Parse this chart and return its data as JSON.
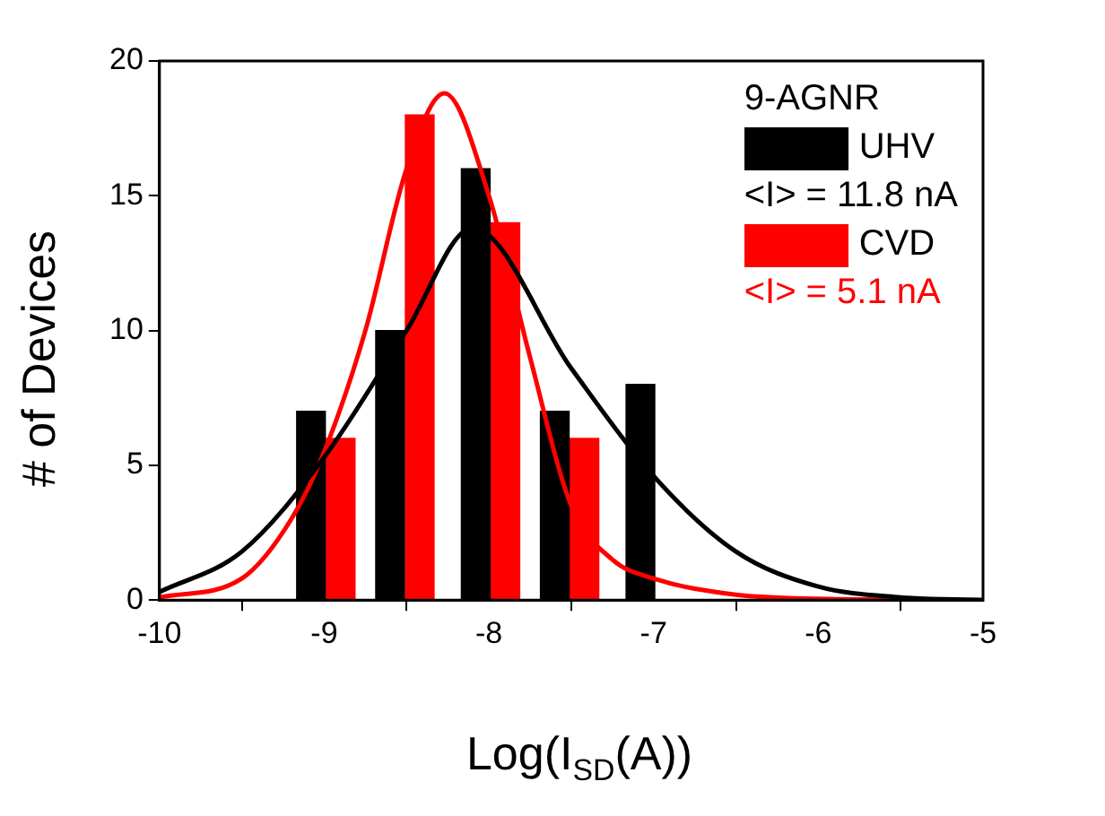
{
  "chart_data": {
    "type": "bar",
    "xlabel": "Log(I$_{SD}$(A))",
    "ylabel": "# of Devices",
    "legend_title": "9-AGNR",
    "legend": "top right",
    "grid": false,
    "xlim": [
      -10,
      -5
    ],
    "xticks": [
      -10,
      -9,
      -8,
      -7,
      -6,
      -5
    ],
    "ylim": [
      0,
      20
    ],
    "yticks": [
      0,
      5,
      10,
      15,
      20
    ],
    "series": [
      {
        "name": "UHV",
        "color": "#000000",
        "x": [
          -9.08,
          -8.6,
          -8.08,
          -7.6,
          -7.08
        ],
        "values": [
          7,
          10,
          16,
          7,
          8
        ]
      },
      {
        "name": "CVD",
        "color": "#ff0000",
        "x": [
          -8.9,
          -8.42,
          -7.9,
          -7.42
        ],
        "values": [
          6,
          18,
          14,
          6
        ]
      },
      {
        "type": "line",
        "color": "#000000",
        "marker": "none",
        "x": [
          -10,
          -9.5,
          -9,
          -8.5,
          -8.1,
          -7.5,
          -7,
          -6.5,
          -6,
          -5.5,
          -5
        ],
        "values": [
          0.3,
          1.8,
          5.3,
          10,
          13.8,
          8.6,
          4.6,
          1.8,
          0.5,
          0.1,
          0
        ]
      },
      {
        "type": "line",
        "color": "#ff0000",
        "marker": "none",
        "x": [
          -10,
          -9.5,
          -9.2,
          -9,
          -8.75,
          -8.5,
          -8.27,
          -8,
          -7.75,
          -7.5,
          -7.25,
          -7,
          -6.5,
          -6,
          -5
        ],
        "values": [
          0.1,
          0.8,
          3,
          5.5,
          10,
          16,
          18.8,
          15,
          9,
          3.5,
          1.5,
          0.8,
          0.2,
          0.05,
          0
        ]
      }
    ],
    "annotations": [
      "<I> = 11.8 nA",
      "<I> = 5.1 nA"
    ]
  }
}
